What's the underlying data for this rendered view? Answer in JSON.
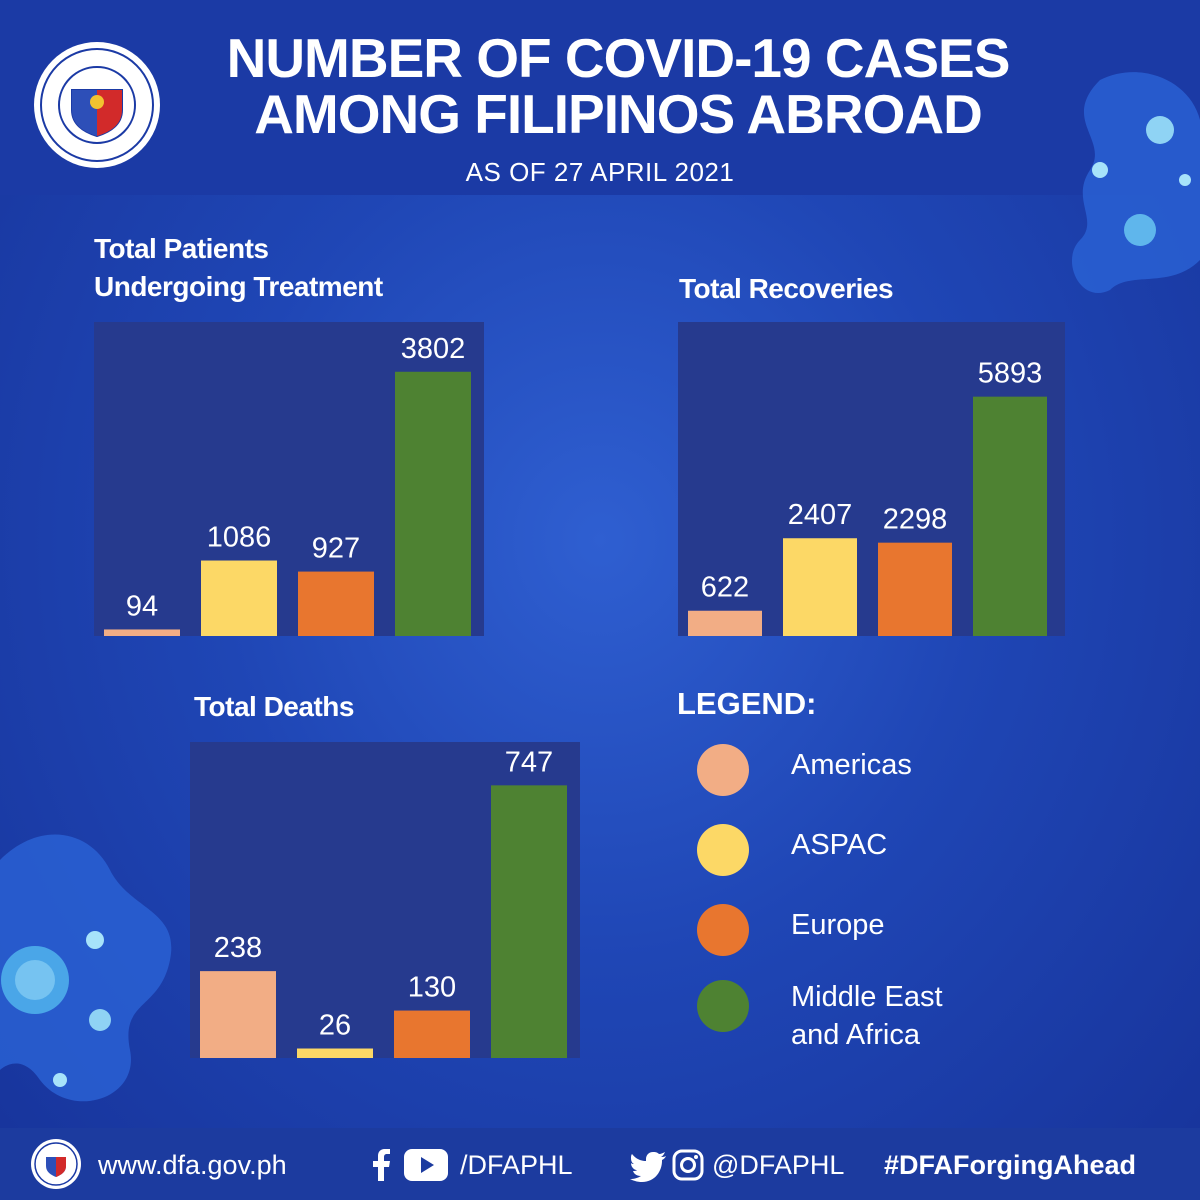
{
  "header": {
    "title_line1": "NUMBER OF  COVID-19 CASES",
    "title_line2": "AMONG FILIPINOS ABROAD",
    "subtitle": "AS OF 27 APRIL 2021"
  },
  "colors": {
    "Americas": "#f2ad85",
    "ASPAC": "#fcd866",
    "Europe": "#e8762f",
    "Middle East and Africa": "#4e8232",
    "panel": "#263a8e"
  },
  "chart_data": [
    {
      "type": "bar",
      "title": "Total Patients Undergoing Treatment",
      "title_line1": "Total Patients",
      "title_line2": "Undergoing Treatment",
      "categories": [
        "Americas",
        "ASPAC",
        "Europe",
        "Middle East and Africa"
      ],
      "values": [
        94,
        1086,
        927,
        3802
      ],
      "value_labels": [
        "94",
        "1086",
        "927",
        "3802"
      ],
      "ylim": [
        0,
        4000
      ]
    },
    {
      "type": "bar",
      "title": "Total Recoveries",
      "categories": [
        "Americas",
        "ASPAC",
        "Europe",
        "Middle East and Africa"
      ],
      "values": [
        622,
        2407,
        2298,
        5893
      ],
      "value_labels": [
        "622",
        "2407",
        "2298",
        "5893"
      ],
      "ylim": [
        0,
        6500
      ]
    },
    {
      "type": "bar",
      "title": "Total Deaths",
      "categories": [
        "Americas",
        "ASPAC",
        "Europe",
        "Middle East and Africa"
      ],
      "values": [
        238,
        26,
        130,
        747
      ],
      "value_labels": [
        "238",
        "26",
        "130",
        "747"
      ],
      "ylim": [
        0,
        800
      ]
    }
  ],
  "legend": {
    "title": "LEGEND:",
    "items": [
      {
        "label": "Americas"
      },
      {
        "label": "ASPAC"
      },
      {
        "label": "Europe"
      },
      {
        "label_line1": "Middle East",
        "label_line2": "and Africa"
      }
    ]
  },
  "footer": {
    "website": "www.dfa.gov.ph",
    "youtube_handle": "/DFAPHL",
    "social_handle": "@DFAPHL",
    "hashtag": "#DFAForgingAhead"
  }
}
